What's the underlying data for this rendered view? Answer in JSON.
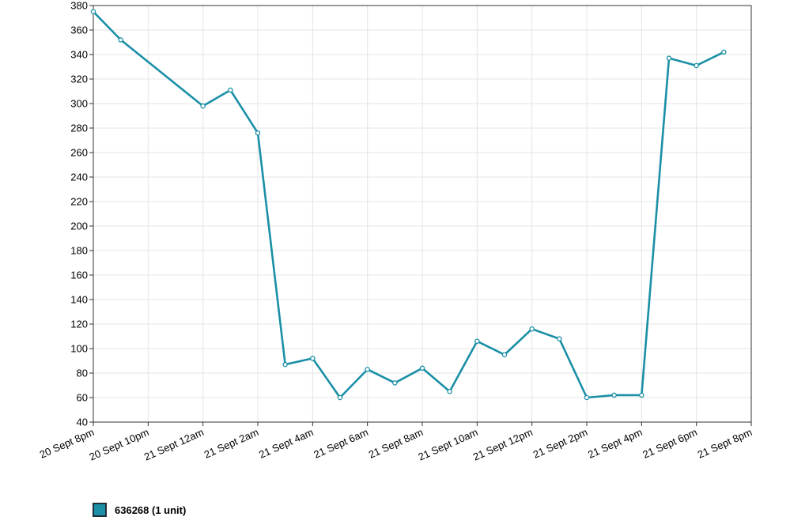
{
  "chart_data": {
    "type": "line",
    "x": [
      "20 Sept 8pm",
      "20 Sept 9pm",
      "20 Sept 10pm",
      "20 Sept 11pm",
      "21 Sept 12am",
      "21 Sept 1am",
      "21 Sept 2am",
      "21 Sept 3am",
      "21 Sept 4am",
      "21 Sept 5am",
      "21 Sept 6am",
      "21 Sept 7am",
      "21 Sept 8am",
      "21 Sept 9am",
      "21 Sept 10am",
      "21 Sept 11am",
      "21 Sept 12pm",
      "21 Sept 1pm",
      "21 Sept 2pm",
      "21 Sept 3pm",
      "21 Sept 4pm",
      "21 Sept 5pm",
      "21 Sept 6pm",
      "21 Sept 7pm"
    ],
    "x_ticks": [
      "20 Sept 8pm",
      "20 Sept 10pm",
      "21 Sept 12am",
      "21 Sept 2am",
      "21 Sept 4am",
      "21 Sept 6am",
      "21 Sept 8am",
      "21 Sept 10am",
      "21 Sept 12pm",
      "21 Sept 2pm",
      "21 Sept 4pm",
      "21 Sept 6pm",
      "21 Sept 8pm"
    ],
    "y_ticks": [
      40,
      60,
      80,
      100,
      120,
      140,
      160,
      180,
      200,
      220,
      240,
      260,
      280,
      300,
      320,
      340,
      360,
      380
    ],
    "ylim": [
      40,
      380
    ],
    "grid": true,
    "series": [
      {
        "name": "636268 (1 unit)",
        "color": "#1a8fa6",
        "points": [
          {
            "x": "20 Sept 8pm",
            "y": 375
          },
          {
            "x": "20 Sept 9pm",
            "y": 352
          },
          {
            "x": "21 Sept 12am",
            "y": 298
          },
          {
            "x": "21 Sept 1am",
            "y": 311
          },
          {
            "x": "21 Sept 2am",
            "y": 276
          },
          {
            "x": "21 Sept 3am",
            "y": 87
          },
          {
            "x": "21 Sept 4am",
            "y": 92
          },
          {
            "x": "21 Sept 5am",
            "y": 60
          },
          {
            "x": "21 Sept 6am",
            "y": 83
          },
          {
            "x": "21 Sept 7am",
            "y": 72
          },
          {
            "x": "21 Sept 8am",
            "y": 84
          },
          {
            "x": "21 Sept 9am",
            "y": 65
          },
          {
            "x": "21 Sept 10am",
            "y": 106
          },
          {
            "x": "21 Sept 11am",
            "y": 95
          },
          {
            "x": "21 Sept 12pm",
            "y": 116
          },
          {
            "x": "21 Sept 1pm",
            "y": 108
          },
          {
            "x": "21 Sept 2pm",
            "y": 60
          },
          {
            "x": "21 Sept 3pm",
            "y": 62
          },
          {
            "x": "21 Sept 4pm",
            "y": 62
          },
          {
            "x": "21 Sept 5pm",
            "y": 337
          },
          {
            "x": "21 Sept 6pm",
            "y": 331
          },
          {
            "x": "21 Sept 7pm",
            "y": 342
          }
        ]
      }
    ],
    "legend": "bottom-left"
  }
}
